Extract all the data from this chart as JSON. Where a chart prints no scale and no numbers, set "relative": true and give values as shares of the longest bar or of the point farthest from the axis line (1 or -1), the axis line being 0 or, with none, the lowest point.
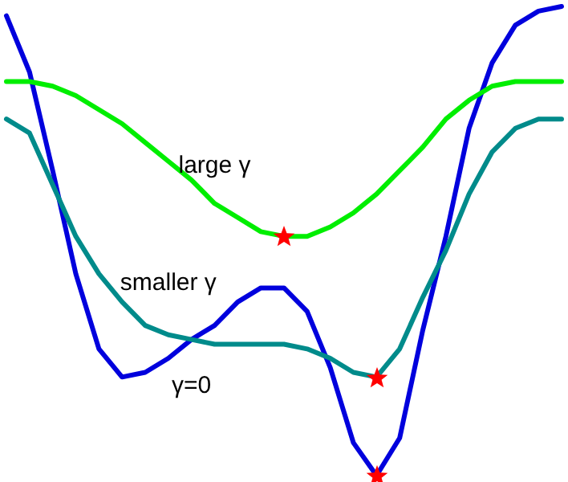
{
  "chart_data": {
    "type": "line",
    "relative": true,
    "legend": false,
    "marker": "none",
    "categories": [
      null,
      null,
      null,
      null,
      null,
      null,
      null,
      null,
      null,
      null,
      null,
      null,
      null,
      null,
      null,
      null,
      null,
      null,
      null,
      null,
      null,
      null,
      null,
      null,
      null
    ],
    "series": [
      {
        "name": "large γ",
        "color": "#00ee00",
        "values": [
          0.84,
          0.84,
          0.83,
          0.81,
          0.78,
          0.75,
          0.71,
          0.67,
          0.63,
          0.58,
          0.55,
          0.52,
          0.51,
          0.51,
          0.53,
          0.56,
          0.6,
          0.65,
          0.7,
          0.76,
          0.8,
          0.83,
          0.84,
          0.84,
          0.84
        ]
      },
      {
        "name": "smaller γ",
        "color": "#008b8b",
        "values": [
          0.76,
          0.73,
          0.62,
          0.51,
          0.43,
          0.37,
          0.32,
          0.3,
          0.29,
          0.28,
          0.28,
          0.28,
          0.28,
          0.27,
          0.25,
          0.22,
          0.21,
          0.27,
          0.38,
          0.48,
          0.6,
          0.69,
          0.74,
          0.76,
          0.76
        ]
      },
      {
        "name": "γ=0",
        "color": "#0000dd",
        "values": [
          0.98,
          0.86,
          0.65,
          0.43,
          0.27,
          0.21,
          0.22,
          0.25,
          0.29,
          0.32,
          0.37,
          0.4,
          0.4,
          0.35,
          0.23,
          0.07,
          0,
          0.08,
          0.31,
          0.51,
          0.74,
          0.88,
          0.96,
          0.99,
          1
        ]
      }
    ]
  }
}
